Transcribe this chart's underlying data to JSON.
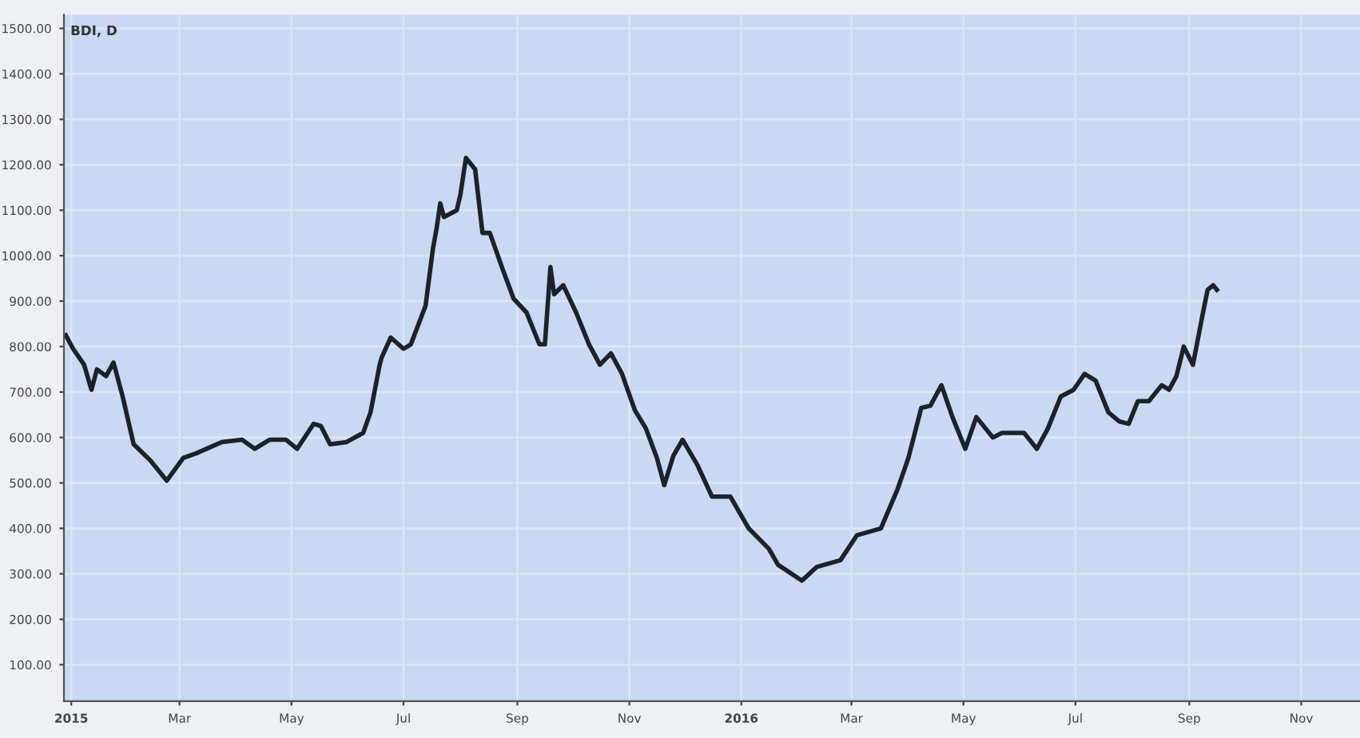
{
  "chart_data": {
    "type": "line",
    "title": "BDI, D",
    "x": [
      "2014-12-29",
      "2015-01-02",
      "2015-01-08",
      "2015-01-12",
      "2015-01-15",
      "2015-01-20",
      "2015-01-24",
      "2015-01-29",
      "2015-02-04",
      "2015-02-13",
      "2015-02-22",
      "2015-03-03",
      "2015-03-10",
      "2015-03-24",
      "2015-04-04",
      "2015-04-11",
      "2015-04-19",
      "2015-04-28",
      "2015-05-04",
      "2015-05-13",
      "2015-05-17",
      "2015-05-22",
      "2015-05-31",
      "2015-06-09",
      "2015-06-13",
      "2015-06-18",
      "2015-06-19",
      "2015-06-24",
      "2015-07-01",
      "2015-07-05",
      "2015-07-13",
      "2015-07-17",
      "2015-07-19",
      "2015-07-21",
      "2015-07-23",
      "2015-07-30",
      "2015-08-01",
      "2015-08-04",
      "2015-08-09",
      "2015-08-13",
      "2015-08-17",
      "2015-08-24",
      "2015-08-30",
      "2015-09-06",
      "2015-09-13",
      "2015-09-16",
      "2015-09-19",
      "2015-09-21",
      "2015-09-26",
      "2015-10-03",
      "2015-10-10",
      "2015-10-16",
      "2015-10-22",
      "2015-10-28",
      "2015-11-04",
      "2015-11-10",
      "2015-11-16",
      "2015-11-20",
      "2015-11-25",
      "2015-11-30",
      "2015-12-08",
      "2015-12-16",
      "2015-12-26",
      "2016-01-05",
      "2016-01-16",
      "2016-01-21",
      "2016-02-03",
      "2016-02-11",
      "2016-02-24",
      "2016-03-04",
      "2016-03-17",
      "2016-03-26",
      "2016-04-01",
      "2016-04-08",
      "2016-04-13",
      "2016-04-19",
      "2016-04-25",
      "2016-05-02",
      "2016-05-08",
      "2016-05-17",
      "2016-05-22",
      "2016-06-03",
      "2016-06-10",
      "2016-06-16",
      "2016-06-23",
      "2016-06-30",
      "2016-07-06",
      "2016-07-12",
      "2016-07-19",
      "2016-07-25",
      "2016-07-30",
      "2016-08-04",
      "2016-08-10",
      "2016-08-17",
      "2016-08-21",
      "2016-08-25",
      "2016-08-29",
      "2016-09-03",
      "2016-09-08",
      "2016-09-11",
      "2016-09-14",
      "2016-09-16"
    ],
    "series": [
      {
        "color": "#1c212b",
        "values": [
          825,
          795,
          760,
          705,
          750,
          735,
          765,
          690,
          585,
          550,
          505,
          555,
          565,
          590,
          595,
          575,
          595,
          595,
          575,
          630,
          625,
          585,
          590,
          610,
          655,
          760,
          775,
          820,
          795,
          805,
          890,
          1015,
          1060,
          1115,
          1085,
          1100,
          1135,
          1215,
          1190,
          1050,
          1050,
          970,
          905,
          875,
          805,
          805,
          975,
          915,
          935,
          875,
          805,
          760,
          785,
          740,
          660,
          620,
          555,
          495,
          560,
          595,
          540,
          470,
          470,
          400,
          355,
          320,
          285,
          315,
          330,
          385,
          400,
          485,
          555,
          665,
          670,
          715,
          645,
          575,
          645,
          600,
          610,
          610,
          575,
          620,
          690,
          705,
          740,
          725,
          655,
          635,
          630,
          680,
          680,
          715,
          705,
          735,
          800,
          760,
          865,
          925,
          935,
          925
        ]
      }
    ],
    "xlim": [
      "2014-12-28",
      "2016-12-03"
    ],
    "xticks": [
      {
        "value": "2015-01-01",
        "label": "2015"
      },
      {
        "value": "2015-03-01",
        "label": "Mar"
      },
      {
        "value": "2015-05-01",
        "label": "May"
      },
      {
        "value": "2015-07-01",
        "label": "Jul"
      },
      {
        "value": "2015-09-01",
        "label": "Sep"
      },
      {
        "value": "2015-11-01",
        "label": "Nov"
      },
      {
        "value": "2016-01-01",
        "label": "2016"
      },
      {
        "value": "2016-03-01",
        "label": "Mar"
      },
      {
        "value": "2016-05-01",
        "label": "May"
      },
      {
        "value": "2016-07-01",
        "label": "Jul"
      },
      {
        "value": "2016-09-01",
        "label": "Sep"
      },
      {
        "value": "2016-11-01",
        "label": "Nov"
      }
    ],
    "ylim": [
      20,
      1530
    ],
    "yticks": [
      {
        "value": 100,
        "label": "100.00"
      },
      {
        "value": 200,
        "label": "200.00"
      },
      {
        "value": 300,
        "label": "300.00"
      },
      {
        "value": 400,
        "label": "400.00"
      },
      {
        "value": 500,
        "label": "500.00"
      },
      {
        "value": 600,
        "label": "600.00"
      },
      {
        "value": 700,
        "label": "700.00"
      },
      {
        "value": 800,
        "label": "800.00"
      },
      {
        "value": 900,
        "label": "900.00"
      },
      {
        "value": 1000,
        "label": "1000.00"
      },
      {
        "value": 1100,
        "label": "1100.00"
      },
      {
        "value": 1200,
        "label": "1200.00"
      },
      {
        "value": 1300,
        "label": "1300.00"
      },
      {
        "value": 1400,
        "label": "1400.00"
      },
      {
        "value": 1500,
        "label": "1500.00"
      }
    ],
    "grid": true,
    "line_style": "solid"
  }
}
